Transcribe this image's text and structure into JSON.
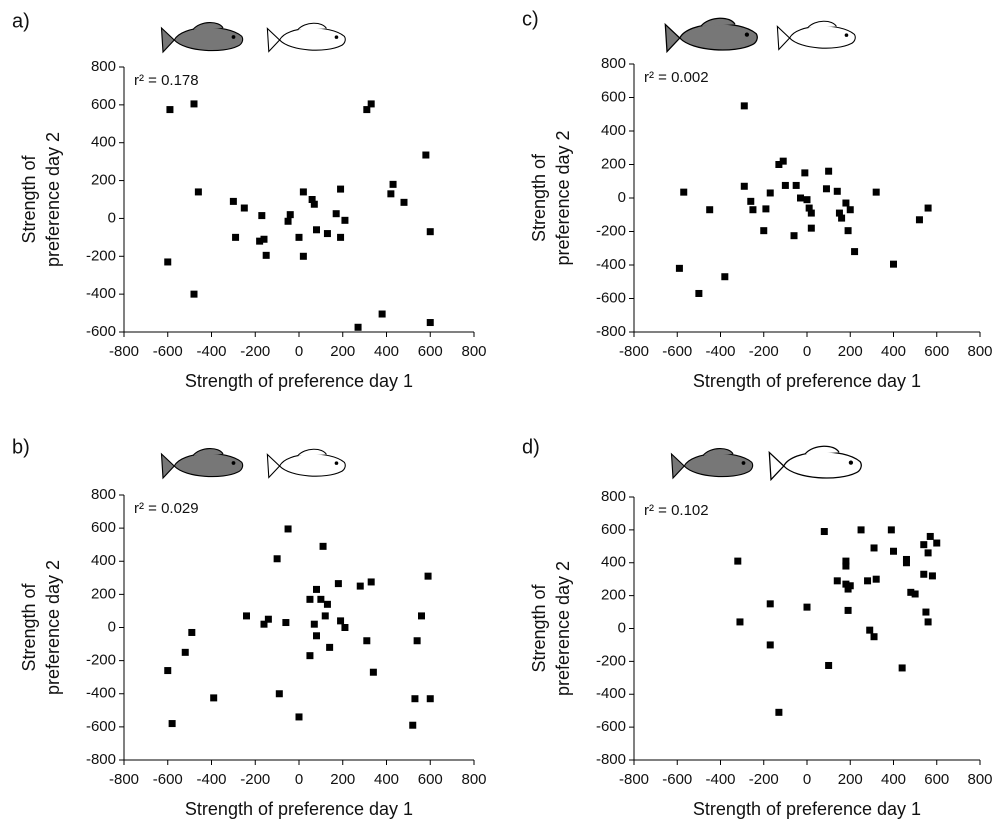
{
  "chart_data": [
    {
      "type": "scatter",
      "panel": "a)",
      "annotation": "r² = 0.178",
      "xlabel": "Strength of preference day 1",
      "ylabel": [
        "Strength of",
        "preference day 2"
      ],
      "color": "#000000",
      "xlim": [
        -800,
        800
      ],
      "ylim": [
        -600,
        800
      ],
      "xticks": [
        -800,
        -600,
        -400,
        -200,
        0,
        200,
        400,
        600,
        800
      ],
      "yticks": [
        -600,
        -400,
        -200,
        0,
        200,
        400,
        600,
        800
      ],
      "x": [
        -590,
        -480,
        -600,
        -480,
        -460,
        -300,
        -290,
        -250,
        -180,
        -170,
        -160,
        -150,
        -50,
        -40,
        0,
        20,
        20,
        60,
        70,
        80,
        130,
        170,
        190,
        190,
        210,
        270,
        310,
        330,
        380,
        420,
        430,
        480,
        580,
        600,
        600
      ],
      "values": [
        575,
        605,
        -230,
        -400,
        140,
        90,
        -100,
        55,
        -120,
        15,
        -110,
        -195,
        -15,
        20,
        -100,
        140,
        -200,
        100,
        75,
        -60,
        -80,
        25,
        155,
        -100,
        -10,
        -575,
        575,
        605,
        -505,
        130,
        180,
        85,
        335,
        -70,
        -550
      ]
    },
    {
      "type": "scatter",
      "panel": "c)",
      "annotation": "r² = 0.002",
      "xlabel": "Strength of preference day 1",
      "ylabel": [
        "Strength of",
        "preference day 2"
      ],
      "color": "#000000",
      "xlim": [
        -800,
        800
      ],
      "ylim": [
        -800,
        800
      ],
      "xticks": [
        -800,
        -600,
        -400,
        -200,
        0,
        200,
        400,
        600,
        800
      ],
      "yticks": [
        -800,
        -600,
        -400,
        -200,
        0,
        200,
        400,
        600,
        800
      ],
      "x": [
        -590,
        -570,
        -500,
        -450,
        -380,
        -290,
        -290,
        -260,
        -250,
        -200,
        -190,
        -170,
        -130,
        -110,
        -100,
        -60,
        -50,
        -30,
        -10,
        0,
        10,
        20,
        20,
        90,
        100,
        140,
        150,
        160,
        180,
        190,
        200,
        220,
        320,
        400,
        520,
        560
      ],
      "values": [
        -420,
        35,
        -570,
        -70,
        -470,
        550,
        70,
        -20,
        -70,
        -195,
        -65,
        30,
        200,
        220,
        75,
        -225,
        75,
        0,
        150,
        -10,
        -60,
        -180,
        -90,
        55,
        160,
        40,
        -90,
        -120,
        -30,
        -195,
        -70,
        -320,
        35,
        -395,
        -130,
        -60
      ]
    },
    {
      "type": "scatter",
      "panel": "b)",
      "annotation": "r² = 0.029",
      "xlabel": "Strength of preference day 1",
      "ylabel": [
        "Strength of",
        "preference day 2"
      ],
      "color": "#000000",
      "xlim": [
        -800,
        800
      ],
      "ylim": [
        -800,
        800
      ],
      "xticks": [
        -800,
        -600,
        -400,
        -200,
        0,
        200,
        400,
        600,
        800
      ],
      "yticks": [
        -800,
        -600,
        -400,
        -200,
        0,
        200,
        400,
        600,
        800
      ],
      "x": [
        -600,
        -580,
        -520,
        -490,
        -390,
        -240,
        -160,
        -140,
        -100,
        -90,
        -60,
        -50,
        0,
        50,
        50,
        70,
        80,
        80,
        100,
        110,
        120,
        130,
        140,
        180,
        190,
        210,
        280,
        310,
        330,
        340,
        520,
        530,
        540,
        560,
        590,
        600
      ],
      "values": [
        -260,
        -580,
        -150,
        -30,
        -425,
        70,
        20,
        50,
        415,
        -400,
        30,
        595,
        -540,
        170,
        -170,
        20,
        230,
        -50,
        170,
        490,
        70,
        140,
        -120,
        265,
        40,
        0,
        250,
        -80,
        275,
        -270,
        -590,
        -430,
        -80,
        70,
        310,
        -430
      ]
    },
    {
      "type": "scatter",
      "panel": "d)",
      "annotation": "r² = 0.102",
      "xlabel": "Strength of preference day 1",
      "ylabel": [
        "Strength of",
        "preference day 2"
      ],
      "color": "#000000",
      "xlim": [
        -800,
        800
      ],
      "ylim": [
        -800,
        800
      ],
      "xticks": [
        -800,
        -600,
        -400,
        -200,
        0,
        200,
        400,
        600,
        800
      ],
      "yticks": [
        -800,
        -600,
        -400,
        -200,
        0,
        200,
        400,
        600,
        800
      ],
      "x": [
        -320,
        -310,
        -170,
        -170,
        -130,
        0,
        80,
        100,
        140,
        180,
        180,
        180,
        190,
        190,
        200,
        250,
        280,
        290,
        310,
        310,
        320,
        390,
        400,
        440,
        460,
        460,
        480,
        500,
        540,
        540,
        550,
        560,
        560,
        570,
        580,
        600
      ],
      "values": [
        410,
        40,
        150,
        -100,
        -510,
        130,
        590,
        -225,
        290,
        410,
        380,
        270,
        110,
        240,
        260,
        600,
        290,
        -10,
        -50,
        490,
        300,
        600,
        470,
        -240,
        400,
        420,
        220,
        210,
        510,
        330,
        100,
        460,
        40,
        560,
        320,
        520
      ]
    }
  ]
}
